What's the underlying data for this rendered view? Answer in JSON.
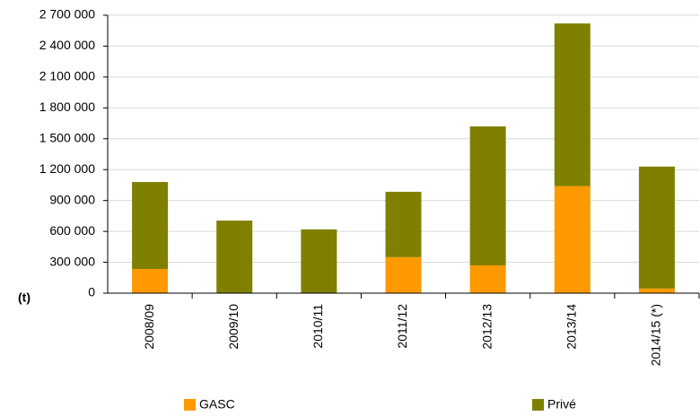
{
  "chart_data": {
    "type": "stacked_bar",
    "y_label": "(t)",
    "categories": [
      "2008/09",
      "2009/10",
      "2010/11",
      "2011/12",
      "2012/13",
      "2013/14",
      "2014/15 (*)"
    ],
    "series": [
      {
        "name": "GASC",
        "color": "#ff9900",
        "values": [
          235000,
          0,
          0,
          350000,
          270000,
          1040000,
          45000
        ]
      },
      {
        "name": "Privé",
        "color": "#808000",
        "values": [
          845000,
          705000,
          620000,
          635000,
          1350000,
          1580000,
          1185000
        ]
      }
    ],
    "ylim": [
      0,
      2700000
    ],
    "yticks": [
      0,
      {
        "value": 300000,
        "label": "300 000"
      },
      {
        "value": 600000,
        "label": "600 000"
      },
      {
        "value": 900000,
        "label": "900 000"
      },
      {
        "value": 1200000,
        "label": "1 200 000"
      },
      {
        "value": 1500000,
        "label": "1 500 000"
      },
      {
        "value": 1800000,
        "label": "1 800 000"
      },
      {
        "value": 2100000,
        "label": "2 100 000"
      },
      {
        "value": 2400000,
        "label": "2 400 000"
      },
      {
        "value": 2700000,
        "label": "2 700 000"
      }
    ],
    "grid": true
  }
}
